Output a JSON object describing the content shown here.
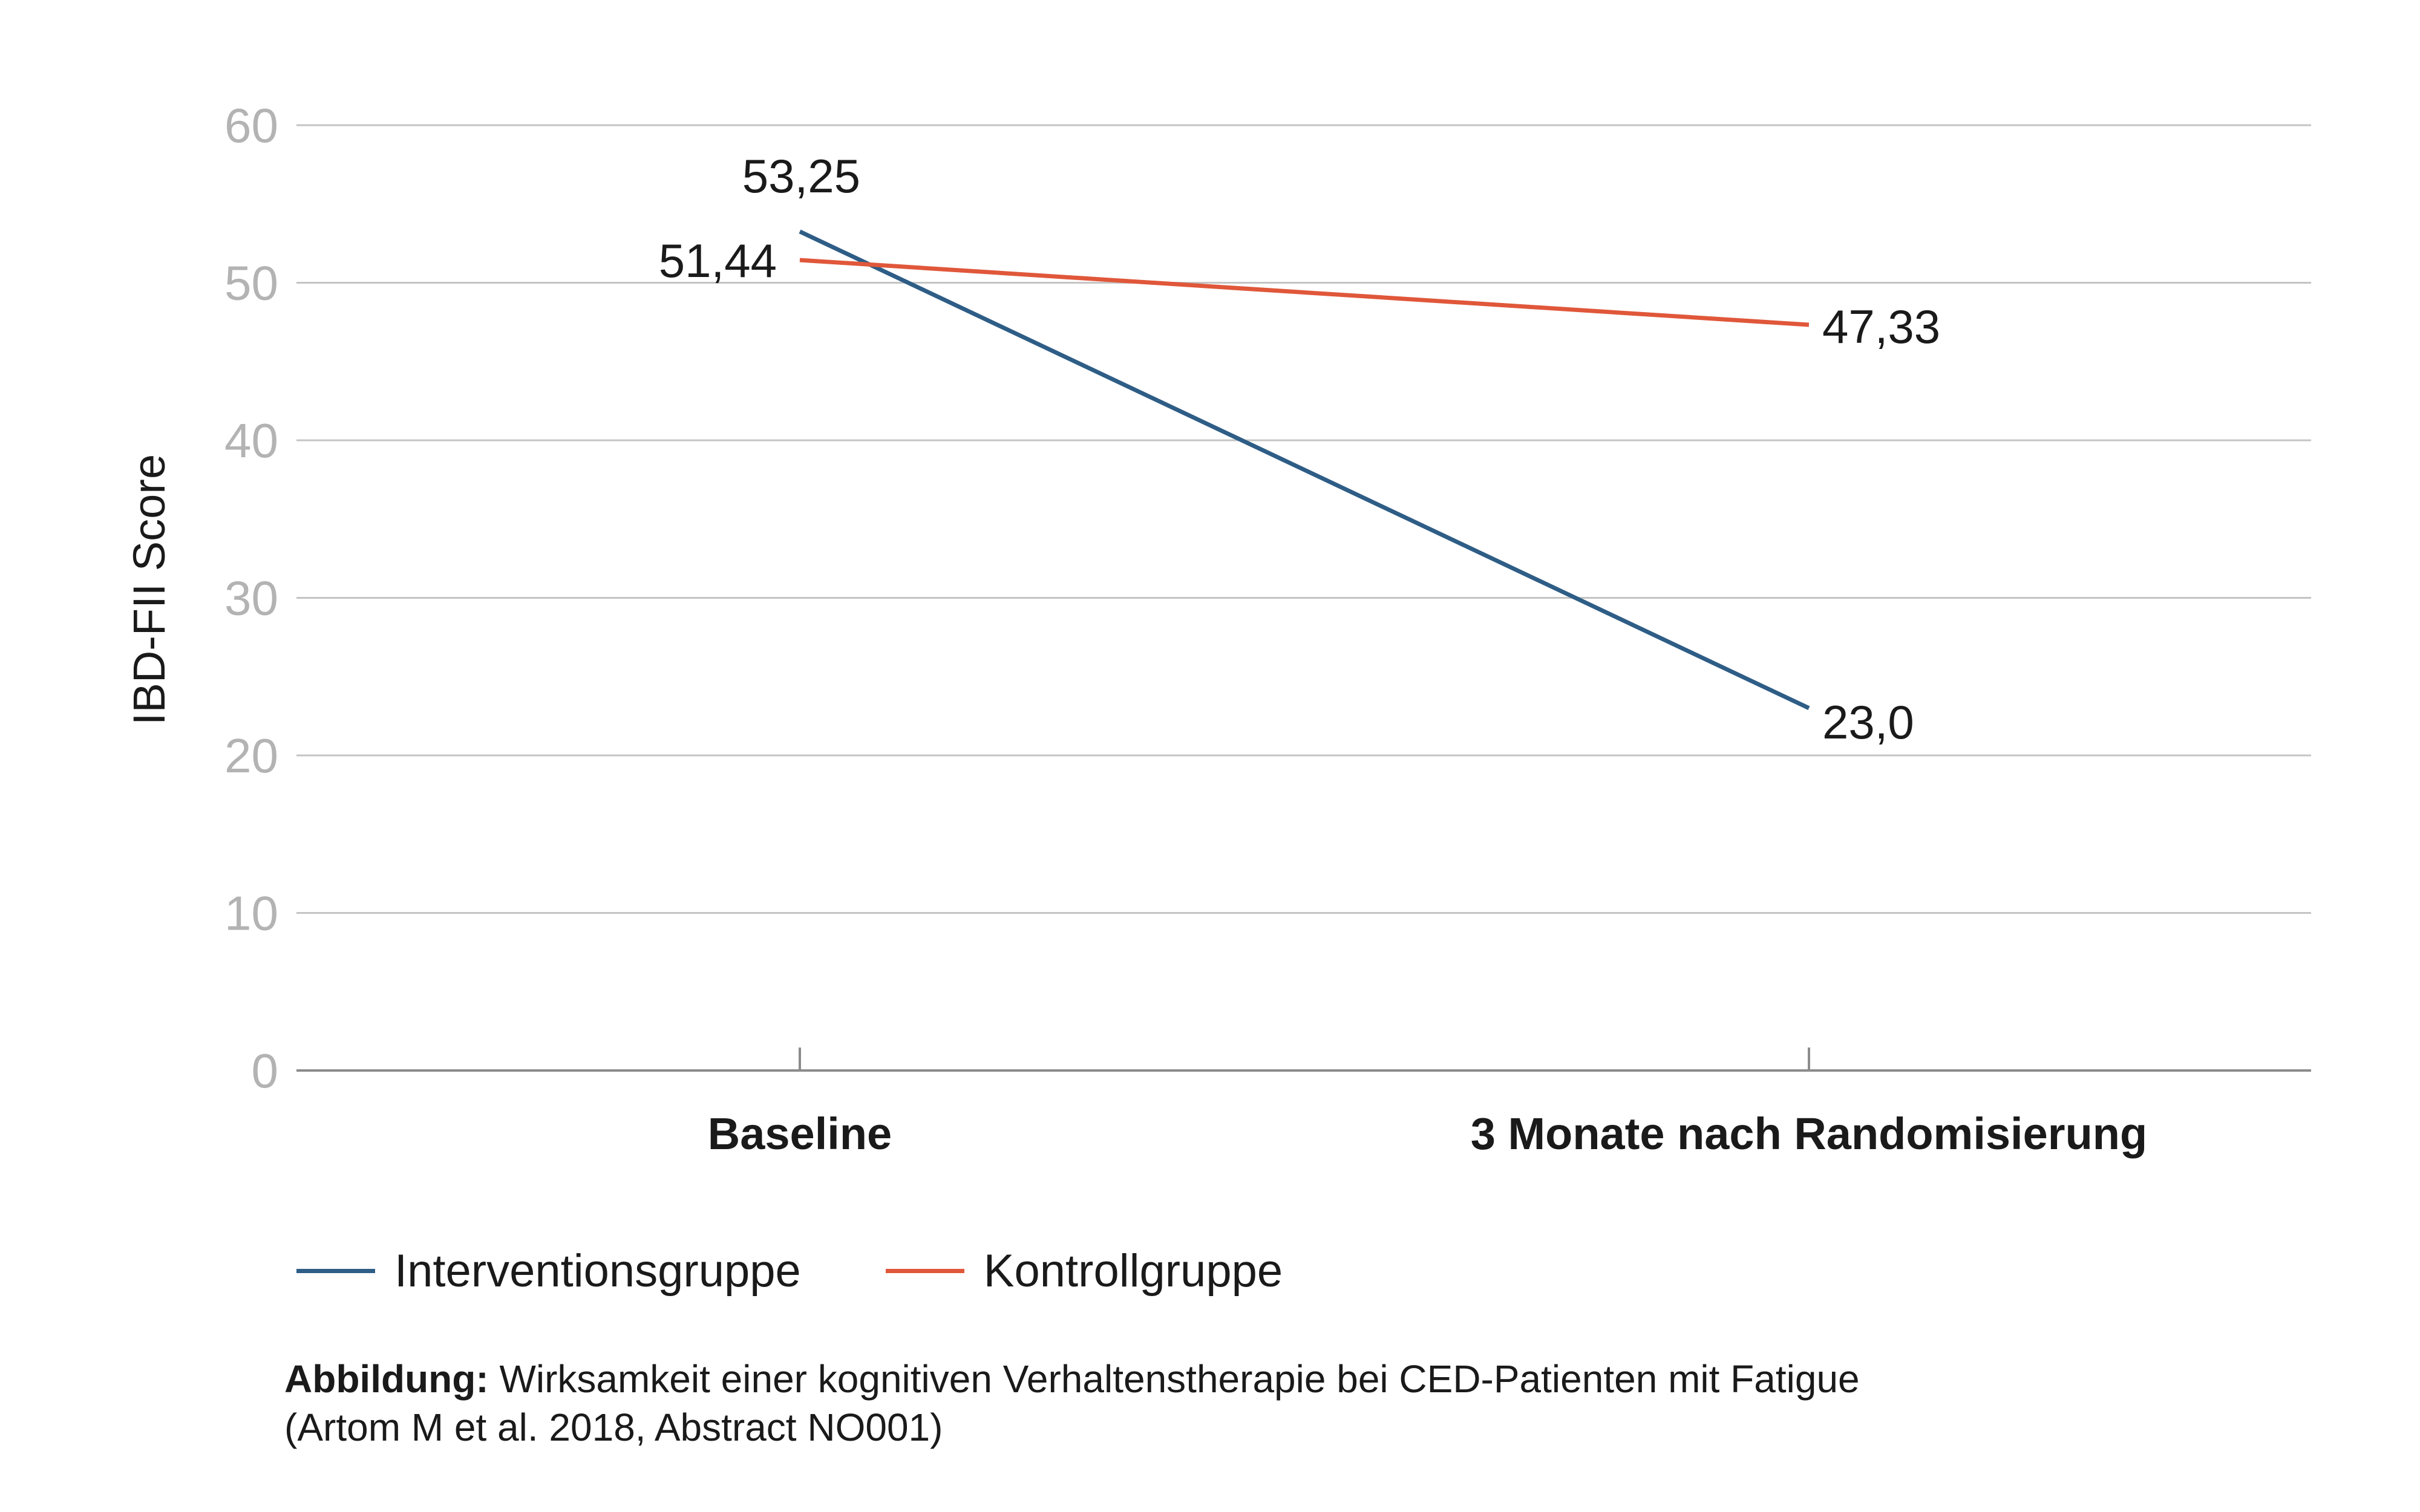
{
  "chart_data": {
    "type": "line",
    "categories": [
      "Baseline",
      "3 Monate nach Randomisierung"
    ],
    "series": [
      {
        "name": "Interventionsgruppe",
        "values": [
          53.25,
          23.0
        ],
        "labels": [
          "53,25",
          "23,0"
        ],
        "color": "#2e5d86"
      },
      {
        "name": "Kontrollgruppe",
        "values": [
          51.44,
          47.33
        ],
        "labels": [
          "51,44",
          "47,33"
        ],
        "color": "#e0573a"
      }
    ],
    "title": "",
    "xlabel": "",
    "ylabel": "IBD-FII Score",
    "ylim": [
      0,
      60
    ],
    "yticks": [
      0,
      10,
      20,
      30,
      40,
      50,
      60
    ],
    "ytick_labels": [
      "0",
      "10",
      "20",
      "30",
      "40",
      "50",
      "60"
    ],
    "grid": true,
    "legend_position": "bottom-left"
  },
  "legend": {
    "items": [
      {
        "label": "Interventionsgruppe",
        "color": "#2e5d86"
      },
      {
        "label": "Kontrollgruppe",
        "color": "#e0573a"
      }
    ]
  },
  "caption": {
    "bold": "Abbildung:",
    "line1": " Wirksamkeit einer kognitiven Verhaltenstherapie bei CED-Patienten mit Fatigue",
    "line2": "(Artom M et al. 2018, Abstract NO001)"
  }
}
